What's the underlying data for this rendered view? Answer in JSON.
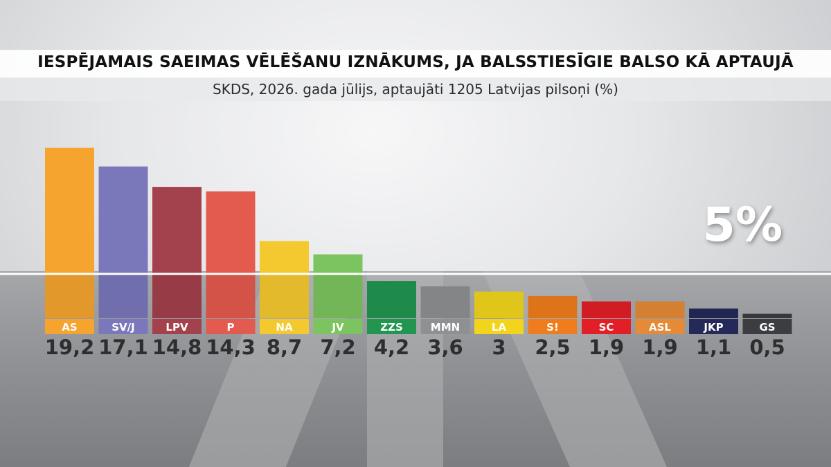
{
  "chart_data": {
    "type": "bar",
    "title": "IESPĒJAMAIS SAEIMAS VĒLĒŠANU IZNĀKUMS, JA BALSSTIESĪGIE BALSO KĀ APTAUJĀ",
    "subtitle": "SKDS, 2026. gada jūlijs, aptaujāti 1205 Latvijas pilsoņi (%)",
    "categories": [
      "AS",
      "SV/J",
      "LPV",
      "P",
      "NA",
      "JV",
      "ZZS",
      "MMN",
      "LA",
      "S!",
      "SC",
      "ASL",
      "JKP",
      "GS"
    ],
    "values": [
      19.2,
      17.1,
      14.8,
      14.3,
      8.7,
      7.2,
      4.2,
      3.6,
      3,
      2.5,
      1.9,
      1.9,
      1.1,
      0.5
    ],
    "value_labels": [
      "19,2",
      "17,1",
      "14,8",
      "14,3",
      "8,7",
      "7,2",
      "4,2",
      "3,6",
      "3",
      "2,5",
      "1,9",
      "1,9",
      "1,1",
      "0,5"
    ],
    "colors": [
      "#f4a42f",
      "#7a77bb",
      "#a3414c",
      "#e35a4e",
      "#f4c930",
      "#7bc45f",
      "#229650",
      "#8f9092",
      "#f2d41c",
      "#ef7d1d",
      "#e21f26",
      "#e58a36",
      "#25295a",
      "#3b3d40"
    ],
    "threshold": 5,
    "threshold_label": "5%",
    "ylim": [
      0,
      20
    ]
  }
}
